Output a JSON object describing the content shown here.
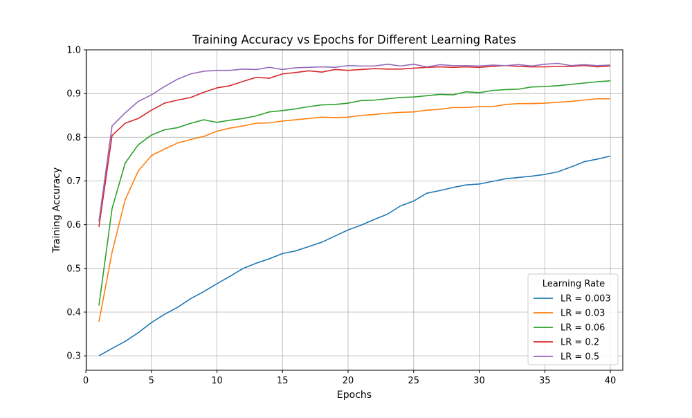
{
  "chart_data": {
    "type": "line",
    "title": "Training Accuracy vs Epochs for Different Learning Rates",
    "xlabel": "Epochs",
    "ylabel": "Training Accuracy",
    "xlim": [
      0.05,
      40.95
    ],
    "ylim": [
      0.267,
      1.0
    ],
    "grid": true,
    "x_ticks": [
      0,
      5,
      10,
      15,
      20,
      25,
      30,
      35,
      40
    ],
    "x_tick_labels": [
      "0",
      "5",
      "10",
      "15",
      "20",
      "25",
      "30",
      "35",
      "40"
    ],
    "y_ticks": [
      0.3,
      0.4,
      0.5,
      0.6,
      0.7,
      0.8,
      0.9,
      1.0
    ],
    "y_tick_labels": [
      "0.3",
      "0.4",
      "0.5",
      "0.6",
      "0.7",
      "0.8",
      "0.9",
      "1.0"
    ],
    "legend": {
      "title": "Learning Rate",
      "placement": "lower-right"
    },
    "x": [
      1,
      2,
      3,
      4,
      5,
      6,
      7,
      8,
      9,
      10,
      11,
      12,
      13,
      14,
      15,
      16,
      17,
      18,
      19,
      20,
      21,
      22,
      23,
      24,
      25,
      26,
      27,
      28,
      29,
      30,
      31,
      32,
      33,
      34,
      35,
      36,
      37,
      38,
      39,
      40
    ],
    "series": [
      {
        "name": "LR = 0.003",
        "color": "#1f77b4",
        "values": [
          0.3,
          0.317,
          0.333,
          0.353,
          0.376,
          0.395,
          0.411,
          0.431,
          0.447,
          0.465,
          0.482,
          0.5,
          0.512,
          0.522,
          0.534,
          0.54,
          0.55,
          0.56,
          0.574,
          0.588,
          0.599,
          0.612,
          0.624,
          0.643,
          0.654,
          0.672,
          0.678,
          0.685,
          0.691,
          0.693,
          0.699,
          0.705,
          0.708,
          0.711,
          0.715,
          0.721,
          0.732,
          0.744,
          0.75,
          0.757
        ]
      },
      {
        "name": "LR = 0.03",
        "color": "#ff7f0e",
        "values": [
          0.378,
          0.537,
          0.657,
          0.723,
          0.758,
          0.773,
          0.787,
          0.795,
          0.802,
          0.814,
          0.821,
          0.826,
          0.832,
          0.833,
          0.837,
          0.84,
          0.843,
          0.846,
          0.845,
          0.846,
          0.85,
          0.852,
          0.855,
          0.857,
          0.858,
          0.862,
          0.864,
          0.868,
          0.868,
          0.87,
          0.87,
          0.875,
          0.877,
          0.877,
          0.878,
          0.88,
          0.882,
          0.885,
          0.888,
          0.888
        ]
      },
      {
        "name": "LR = 0.06",
        "color": "#2ca02c",
        "values": [
          0.415,
          0.637,
          0.741,
          0.783,
          0.805,
          0.817,
          0.822,
          0.832,
          0.84,
          0.834,
          0.839,
          0.843,
          0.849,
          0.858,
          0.861,
          0.865,
          0.87,
          0.874,
          0.875,
          0.878,
          0.884,
          0.885,
          0.888,
          0.891,
          0.892,
          0.895,
          0.898,
          0.897,
          0.904,
          0.902,
          0.907,
          0.909,
          0.91,
          0.915,
          0.916,
          0.918,
          0.921,
          0.924,
          0.927,
          0.929
        ]
      },
      {
        "name": "LR = 0.2",
        "color": "#d62728",
        "values": [
          0.595,
          0.804,
          0.832,
          0.843,
          0.862,
          0.878,
          0.885,
          0.891,
          0.903,
          0.913,
          0.918,
          0.928,
          0.937,
          0.935,
          0.945,
          0.948,
          0.952,
          0.949,
          0.955,
          0.953,
          0.955,
          0.957,
          0.956,
          0.956,
          0.958,
          0.96,
          0.961,
          0.96,
          0.961,
          0.96,
          0.962,
          0.964,
          0.962,
          0.961,
          0.961,
          0.962,
          0.962,
          0.964,
          0.961,
          0.963
        ]
      },
      {
        "name": "LR = 0.5",
        "color": "#9467bd",
        "values": [
          0.608,
          0.826,
          0.856,
          0.882,
          0.897,
          0.916,
          0.933,
          0.945,
          0.951,
          0.953,
          0.953,
          0.956,
          0.955,
          0.96,
          0.955,
          0.959,
          0.96,
          0.961,
          0.96,
          0.964,
          0.963,
          0.963,
          0.967,
          0.963,
          0.967,
          0.961,
          0.966,
          0.964,
          0.964,
          0.963,
          0.965,
          0.964,
          0.966,
          0.963,
          0.967,
          0.969,
          0.964,
          0.966,
          0.964,
          0.965
        ]
      }
    ]
  }
}
